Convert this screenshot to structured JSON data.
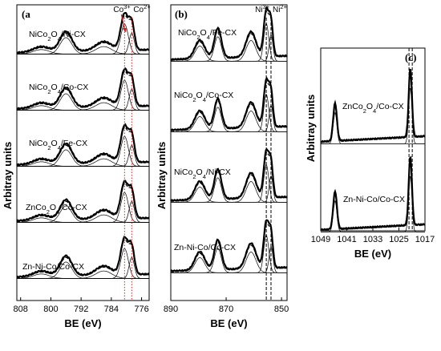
{
  "figure": {
    "ylabel": "Arbitray units"
  },
  "chart_data": [
    {
      "type": "line",
      "panel": "(a",
      "xlabel": "BE (eV)",
      "xticks": [
        808,
        800,
        792,
        784,
        776
      ],
      "xlim": [
        809,
        774
      ],
      "reverse_x": true,
      "markers": [
        {
          "label": "Co3+",
          "x": 780.5,
          "color": "#d62020",
          "style": "dotted"
        },
        {
          "label": "Co2+",
          "x": 778.6,
          "color": "#d62020",
          "style": "dotted"
        }
      ],
      "series": [
        {
          "name": "NiCo2O4/Ni-CX"
        },
        {
          "name": "NiCo2O4/Co-CX"
        },
        {
          "name": "NiCo2O4/Fe-CX"
        },
        {
          "name": "ZnCo2O4/Co-CX"
        },
        {
          "name": "Zn-Ni-Co/Co-CX"
        }
      ],
      "peaks": [
        {
          "center": 796.0,
          "height": 0.55,
          "width": 2.2
        },
        {
          "center": 780.5,
          "height": 1.0,
          "width": 1.4
        },
        {
          "center": 778.6,
          "height": 0.7,
          "width": 1.0
        },
        {
          "center": 786.0,
          "height": 0.25,
          "width": 3.0
        },
        {
          "center": 802.5,
          "height": 0.15,
          "width": 3.0
        }
      ]
    },
    {
      "type": "line",
      "panel": "(b)",
      "xlabel": "BE (eV)",
      "xticks": [
        890,
        870,
        850
      ],
      "xlim": [
        890,
        848
      ],
      "reverse_x": true,
      "markers": [
        {
          "label": "Ni3+",
          "x": 855.5,
          "color": "#000000",
          "style": "dashed"
        },
        {
          "label": "Ni2+",
          "x": 853.8,
          "color": "#000000",
          "style": "dashed"
        }
      ],
      "series": [
        {
          "name": "NiCo2O4/Fe-CX"
        },
        {
          "name": "NiCo2O4/Co-CX"
        },
        {
          "name": "NiCo2O4/Ni-CX"
        },
        {
          "name": "Zn-Ni-Co/Co-CX"
        }
      ],
      "peaks": [
        {
          "center": 855.5,
          "height": 1.0,
          "width": 1.3
        },
        {
          "center": 853.8,
          "height": 0.7,
          "width": 1.0
        },
        {
          "center": 861.0,
          "height": 0.55,
          "width": 2.5
        },
        {
          "center": 873.0,
          "height": 0.65,
          "width": 1.8
        },
        {
          "center": 879.5,
          "height": 0.4,
          "width": 2.5
        }
      ]
    },
    {
      "type": "line",
      "panel": "(c)",
      "xlabel": "BE (eV)",
      "xticks": [
        1049,
        1041,
        1033,
        1025,
        1017
      ],
      "xlim": [
        1049,
        1017
      ],
      "reverse_x": true,
      "markers": [
        {
          "label": "",
          "x": 1021.9,
          "color": "#000000",
          "style": "dashed"
        },
        {
          "label": "",
          "x": 1020.9,
          "color": "#000000",
          "style": "dashed"
        }
      ],
      "series": [
        {
          "name": "ZnCo2O4/Co-CX"
        },
        {
          "name": "Zn-Ni-Co/Co-CX"
        }
      ],
      "peaks": [
        {
          "center": 1021.5,
          "height": 1.0,
          "width": 0.7
        },
        {
          "center": 1044.6,
          "height": 0.55,
          "width": 0.8
        }
      ]
    }
  ]
}
